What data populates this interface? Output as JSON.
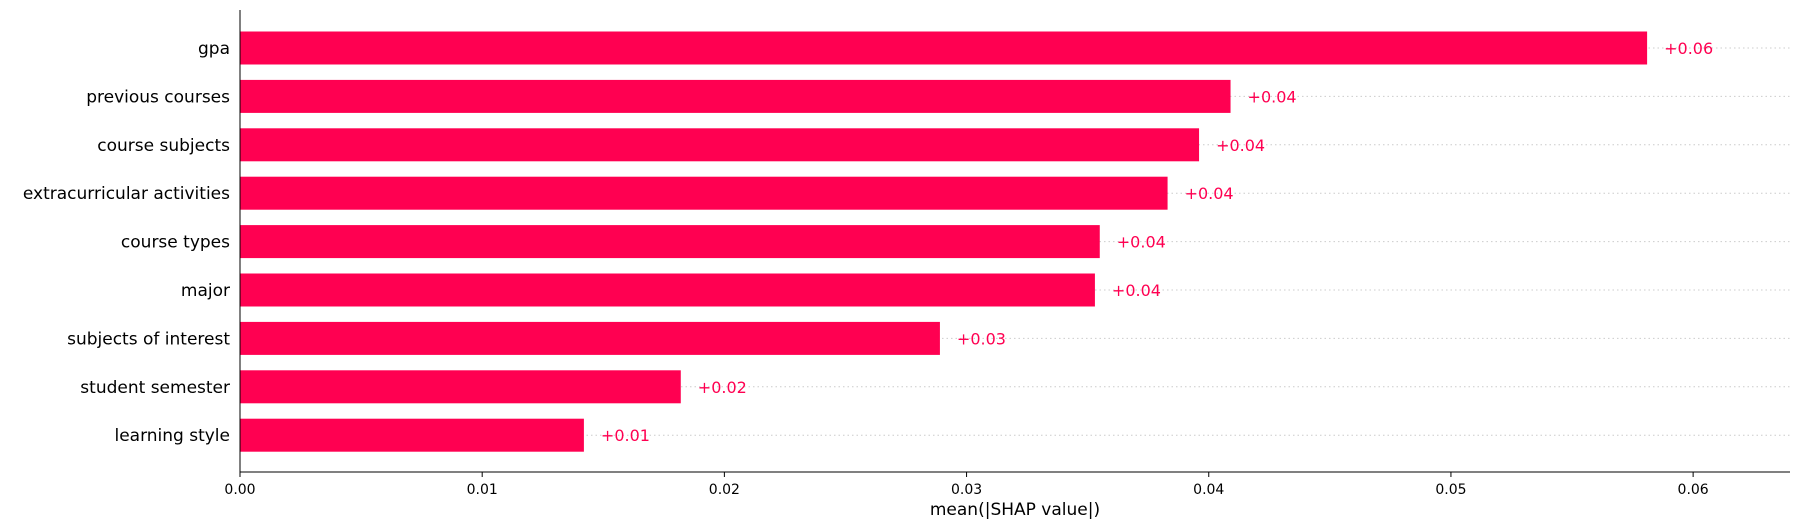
{
  "chart_data": {
    "type": "bar",
    "orientation": "horizontal",
    "title": "",
    "xlabel": "mean(|SHAP value|)",
    "ylabel": "",
    "categories": [
      "gpa",
      "previous courses",
      "course subjects",
      "extracurricular activities",
      "course types",
      "major",
      "subjects of interest",
      "student semester",
      "learning style"
    ],
    "values": [
      0.0581,
      0.0409,
      0.0396,
      0.0383,
      0.0355,
      0.0353,
      0.0289,
      0.0182,
      0.0142
    ],
    "data_labels": [
      "+0.06",
      "+0.04",
      "+0.04",
      "+0.04",
      "+0.04",
      "+0.04",
      "+0.03",
      "+0.02",
      "+0.01"
    ],
    "xticks": [
      0.0,
      0.01,
      0.02,
      0.03,
      0.04,
      0.05,
      0.06
    ],
    "xtick_labels": [
      "0.00",
      "0.01",
      "0.02",
      "0.03",
      "0.04",
      "0.05",
      "0.06"
    ],
    "xlim": [
      0,
      0.064
    ],
    "grid": "dotted horizontal row guides",
    "legend": "none",
    "bar_color": "#ff0051",
    "label_color": "#ff0051"
  }
}
